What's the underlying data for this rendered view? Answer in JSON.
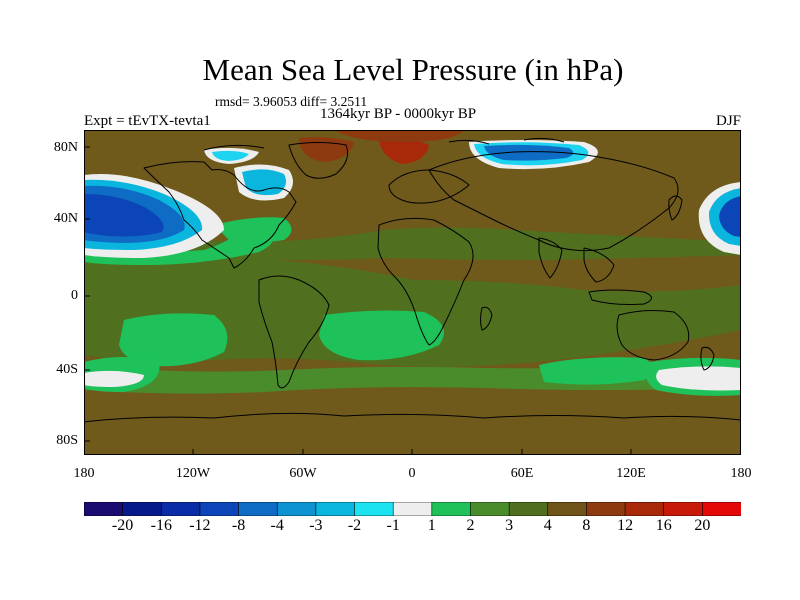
{
  "title": "Mean Sea Level Pressure (in hPa)",
  "stats": "rmsd= 3.96053  diff= 3.2511",
  "period": "1364kyr BP - 0000kyr BP",
  "expt": "Expt = tEvTX-tevta1",
  "season": "DJF",
  "y_axis_labels": [
    "80N",
    "40N",
    "0",
    "40S",
    "80S"
  ],
  "x_axis_labels": [
    "180",
    "120W",
    "60W",
    "0",
    "60E",
    "120E",
    "180"
  ],
  "colorbar": {
    "labels": [
      "-20",
      "-16",
      "-12",
      "-8",
      "-4",
      "-3",
      "-2",
      "-1",
      "1",
      "2",
      "3",
      "4",
      "8",
      "12",
      "16",
      "20"
    ],
    "colors": [
      "#1a0c70",
      "#061a8a",
      "#0a2ca6",
      "#0b45b8",
      "#0e6cc4",
      "#0d93d2",
      "#0ab5de",
      "#1de3f0",
      "#eeeeee",
      "#1fc25a",
      "#4a8c2c",
      "#4f6e1f",
      "#6e5418",
      "#8e3a10",
      "#a8280a",
      "#c81a08",
      "#e50808"
    ]
  },
  "map_colors": {
    "base": "#6f5a1c",
    "green_light": "#1fc25a",
    "green_mid": "#4a8c2c",
    "green_dark": "#50701f",
    "brown": "#6f5a1c",
    "red_brown": "#8e3a10",
    "red": "#b02a0a",
    "blue_dark": "#0b45b8",
    "blue_mid": "#0e6cc4",
    "cyan": "#1dd3f0",
    "white": "#eeeeee",
    "coast": "#000000"
  }
}
